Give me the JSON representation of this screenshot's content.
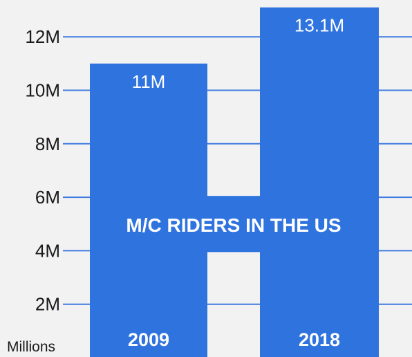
{
  "chart_data": {
    "type": "bar",
    "title": "M/C RIDERS IN THE US",
    "categories": [
      "2009",
      "2018"
    ],
    "values": [
      11,
      13.1
    ],
    "value_labels": [
      "11M",
      "13.1M"
    ],
    "ylabel": "Millions",
    "yticks": [
      2,
      4,
      6,
      8,
      10,
      12
    ],
    "ytick_labels": [
      "2M",
      "4M",
      "6M",
      "8M",
      "10M",
      "12M"
    ],
    "ylim": [
      0,
      13.5
    ],
    "grid": true,
    "colors": {
      "bar": "#2f73de",
      "grid": "#3f7be0",
      "background": "#f2f2f2"
    }
  }
}
